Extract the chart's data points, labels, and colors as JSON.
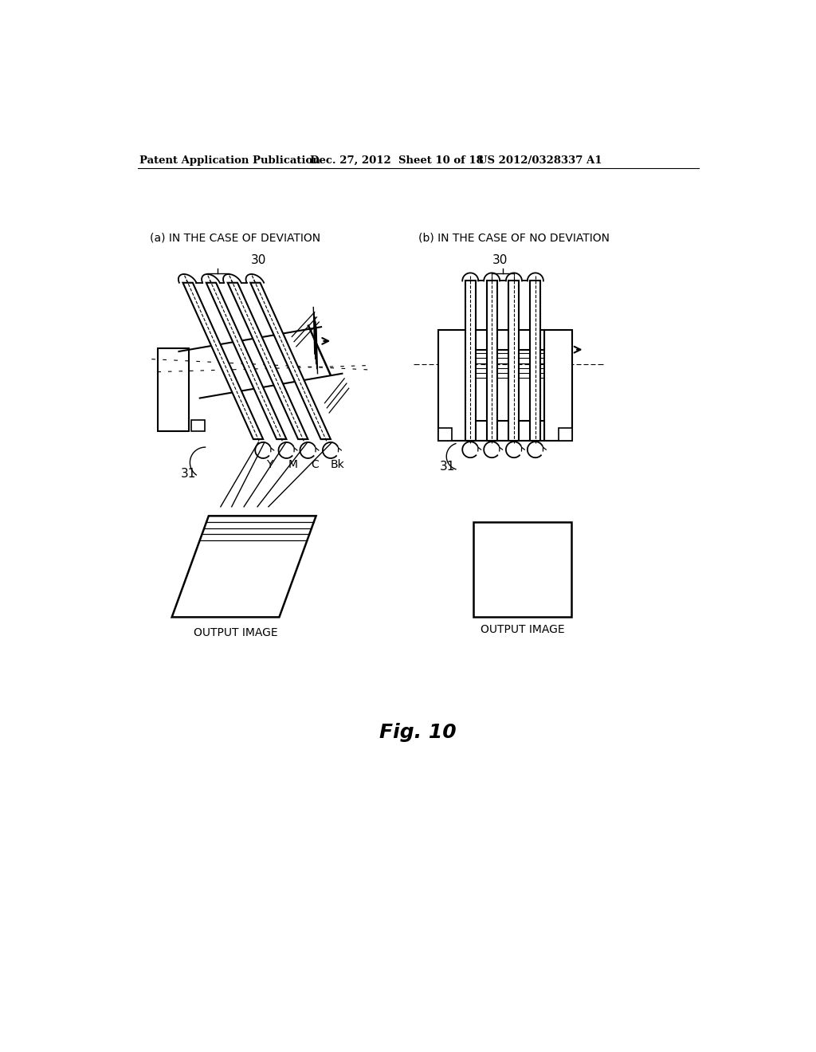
{
  "header_left": "Patent Application Publication",
  "header_mid": "Dec. 27, 2012  Sheet 10 of 18",
  "header_right": "US 2012/0328337 A1",
  "label_a": "(a) IN THE CASE OF DEVIATION",
  "label_b": "(b) IN THE CASE OF NO DEVIATION",
  "label_30_a": "30",
  "label_30_b": "30",
  "label_31_a": "31",
  "label_31_b": "31",
  "label_Y": "Y",
  "label_M": "M",
  "label_C": "C",
  "label_Bk": "Bk",
  "label_output": "OUTPUT IMAGE",
  "fig_label": "Fig. 10",
  "bg_color": "#ffffff",
  "line_color": "#000000"
}
